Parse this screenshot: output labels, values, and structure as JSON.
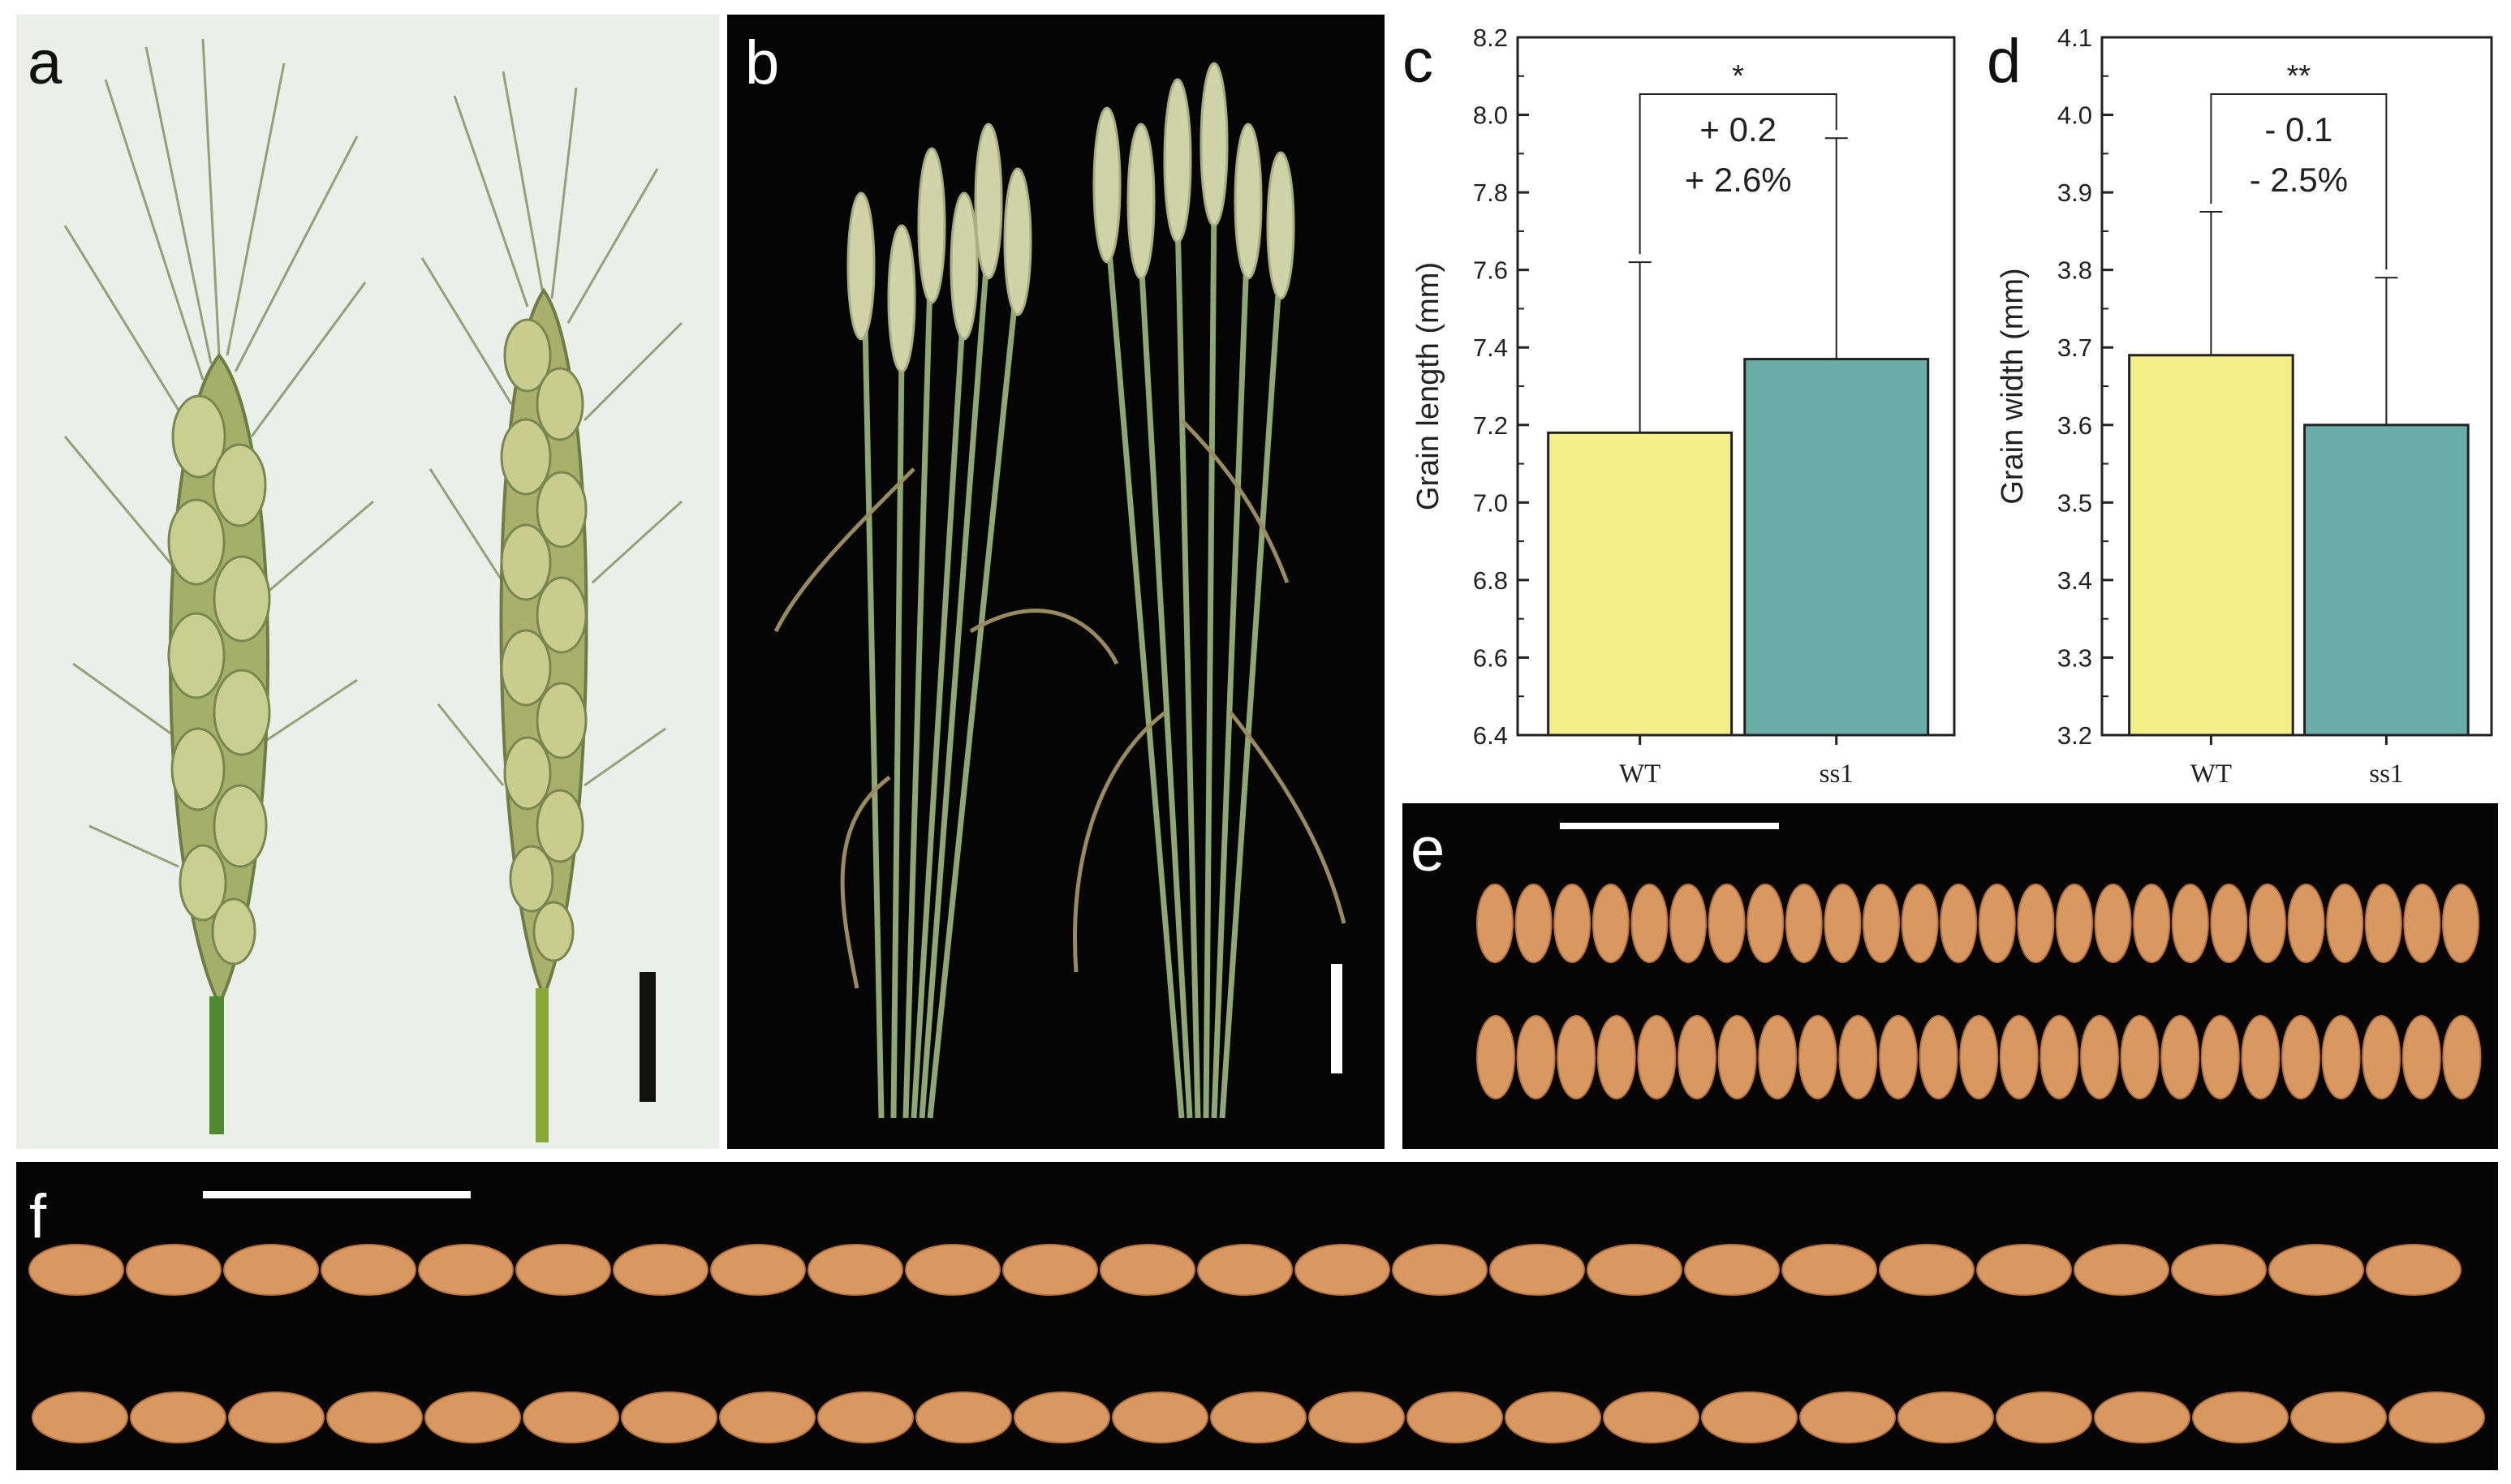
{
  "panels": {
    "a": {
      "label": "a"
    },
    "b": {
      "label": "b"
    },
    "c": {
      "label": "c"
    },
    "d": {
      "label": "d"
    },
    "e": {
      "label": "e"
    },
    "f": {
      "label": "f"
    }
  },
  "colors": {
    "wt_bar": "#f2ef86",
    "ss1_bar": "#6aaea8",
    "grain": "#d99860"
  },
  "chart_data": [
    {
      "id": "c",
      "type": "bar",
      "categories": [
        "WT",
        "ss1"
      ],
      "values": [
        7.18,
        7.37
      ],
      "errors": [
        0.44,
        0.57
      ],
      "ylabel": "Grain length (mm)",
      "ylim": [
        6.4,
        8.2
      ],
      "yticks": [
        "6.4",
        "6.6",
        "6.8",
        "7.0",
        "7.2",
        "7.4",
        "7.6",
        "7.8",
        "8.0",
        "8.2"
      ],
      "significance": "*",
      "annotation_lines": [
        "+ 0.2",
        "+ 2.6%"
      ]
    },
    {
      "id": "d",
      "type": "bar",
      "categories": [
        "WT",
        "ss1"
      ],
      "values": [
        3.69,
        3.6
      ],
      "errors": [
        0.185,
        0.19
      ],
      "ylabel": "Grain width (mm)",
      "ylim": [
        3.2,
        4.1
      ],
      "yticks": [
        "3.2",
        "3.3",
        "3.4",
        "3.5",
        "3.6",
        "3.7",
        "3.8",
        "3.9",
        "4.0",
        "4.1"
      ],
      "significance": "**",
      "annotation_lines": [
        "- 0.1",
        "- 2.5%"
      ]
    }
  ]
}
